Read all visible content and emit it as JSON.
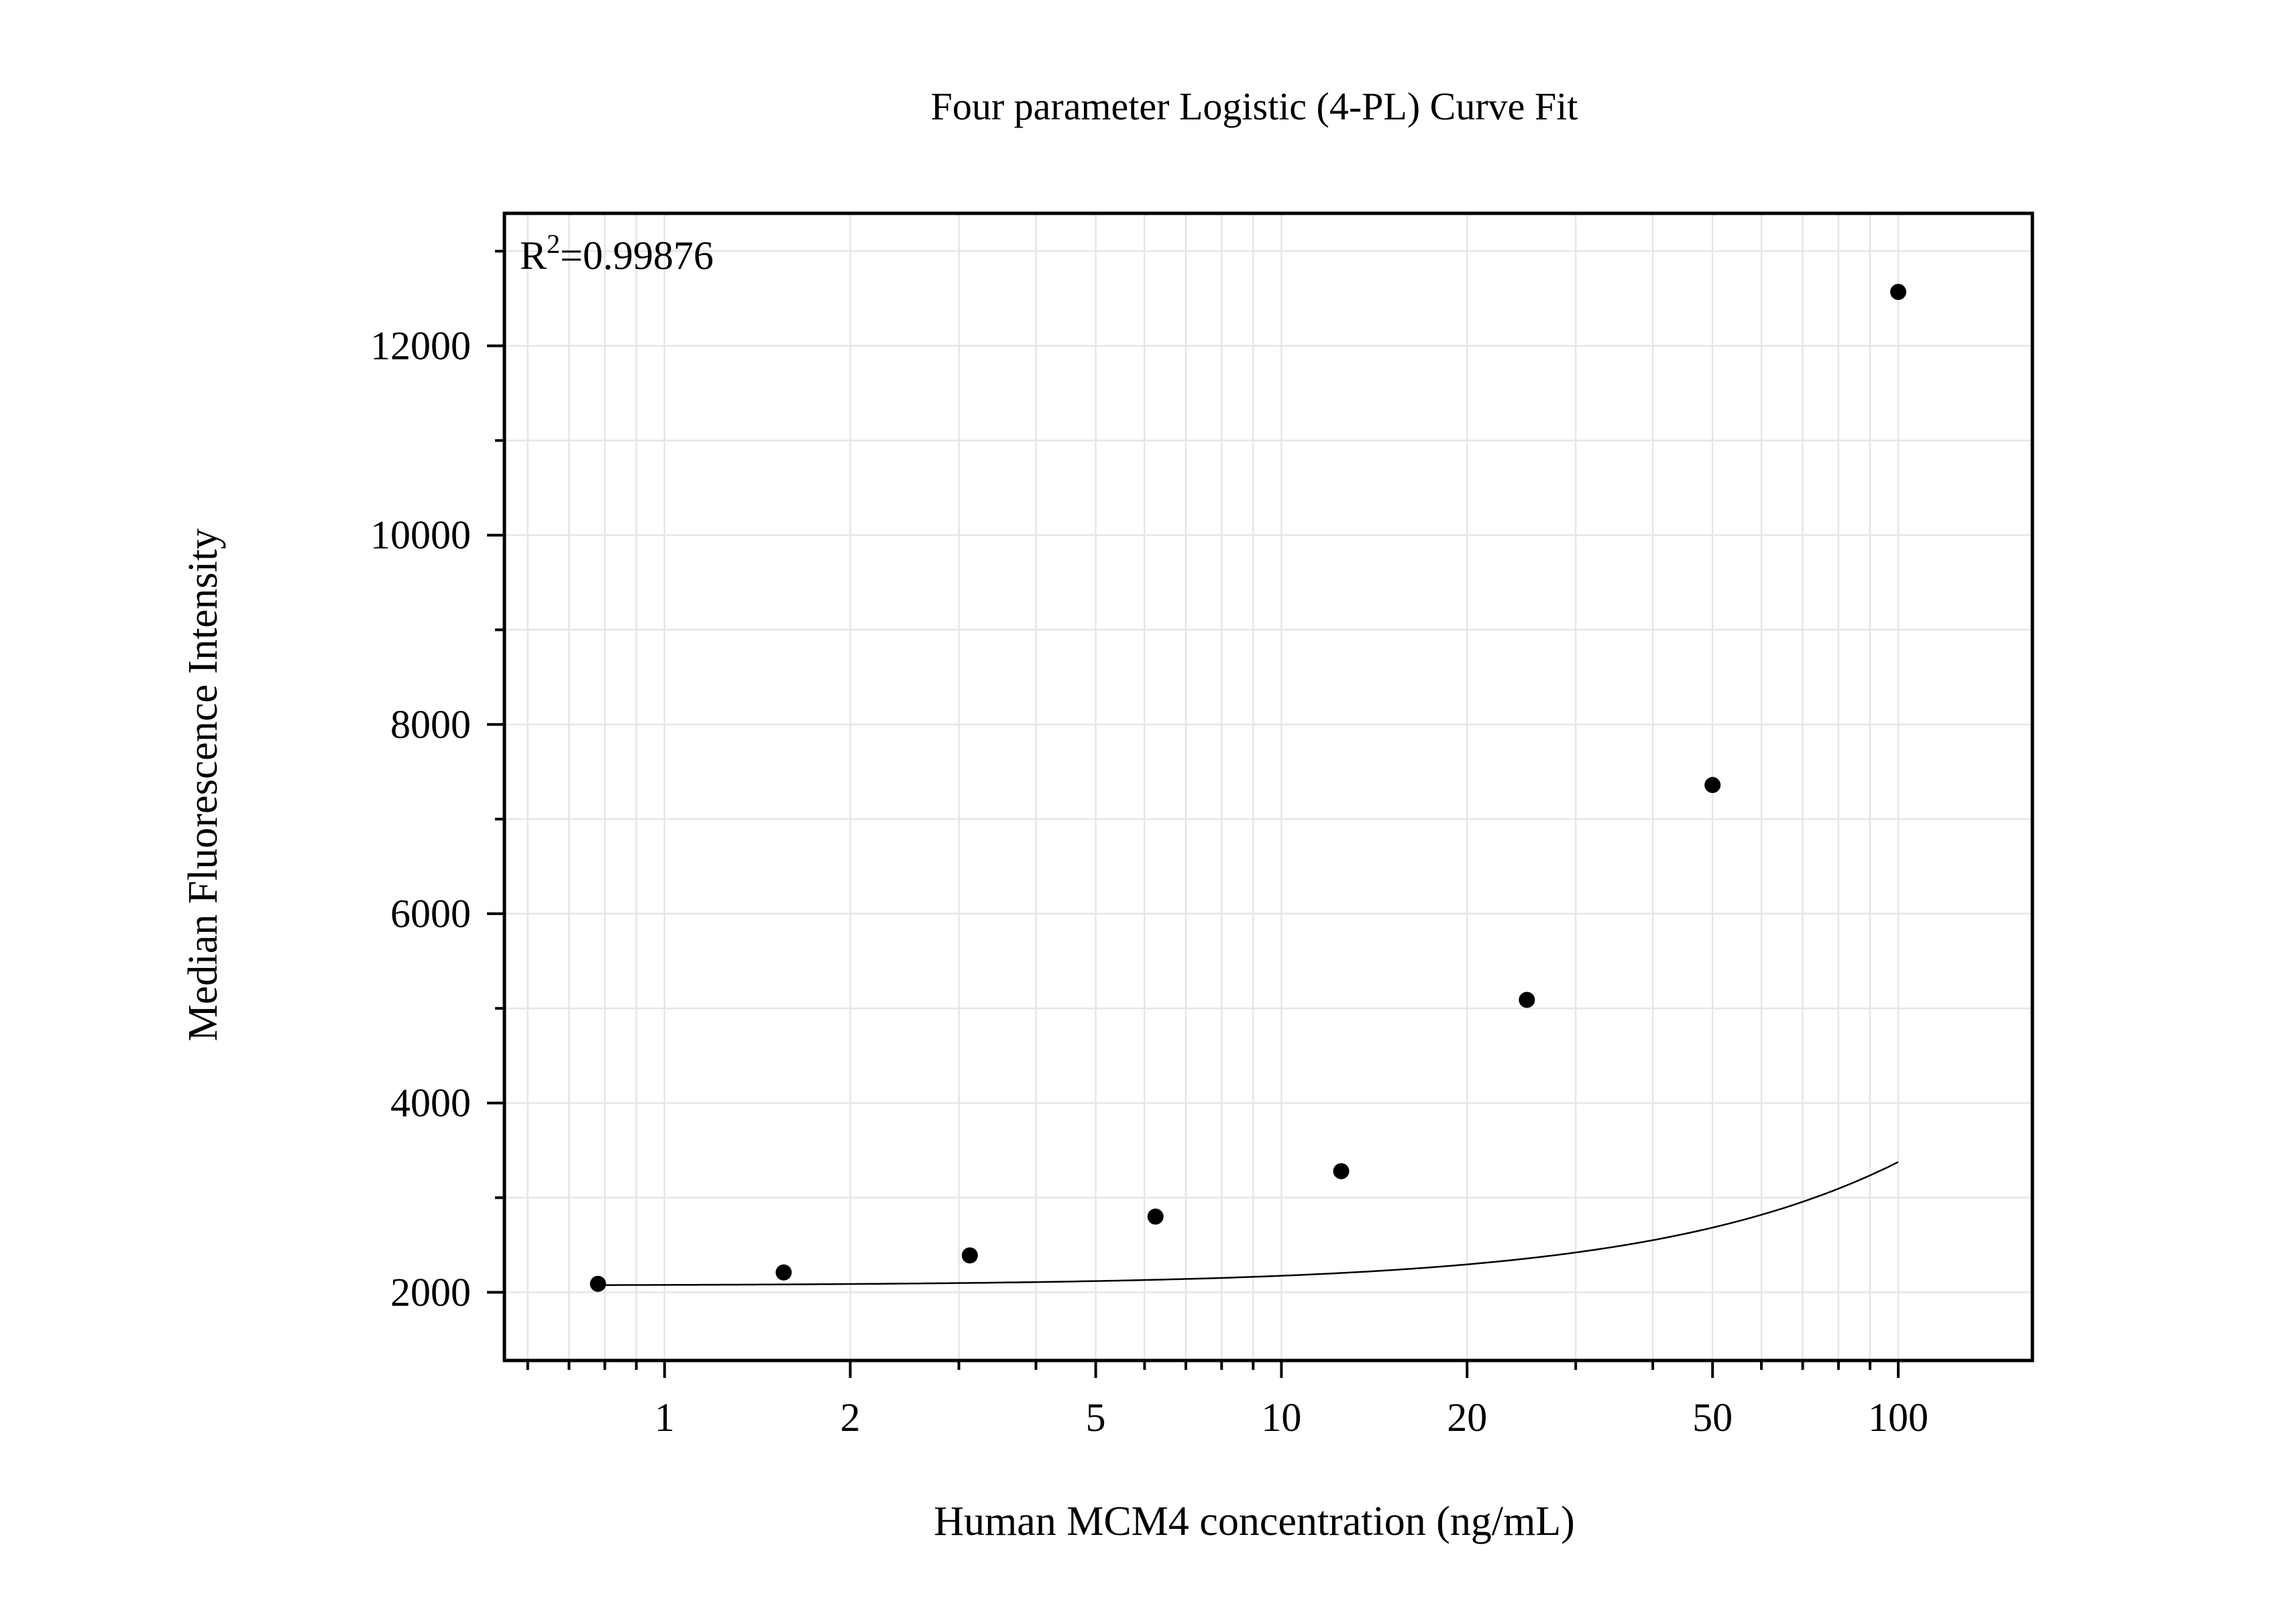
{
  "chart_data": {
    "type": "scatter",
    "title": "Four parameter Logistic (4-PL) Curve Fit",
    "xlabel": "Human MCM4 concentration (ng/mL)",
    "ylabel": "Median Fluorescence Intensity",
    "x_scale": "log",
    "xlim": [
      0.55,
      165
    ],
    "ylim": [
      1280,
      13400
    ],
    "x_ticks": [
      1,
      2,
      5,
      10,
      20,
      50,
      100
    ],
    "x_tick_labels": [
      "1",
      "2",
      "5",
      "10",
      "20",
      "50",
      "100"
    ],
    "y_ticks": [
      2000,
      4000,
      6000,
      8000,
      10000,
      12000
    ],
    "y_tick_labels": [
      "2000",
      "4000",
      "6000",
      "8000",
      "10000",
      "12000"
    ],
    "grid": true,
    "annotation": {
      "base": "R",
      "superscript": "2",
      "value": "=0.99876"
    },
    "series": [
      {
        "marker": "dot",
        "x": [
          0.78,
          1.56,
          3.125,
          6.25,
          12.5,
          25,
          50,
          100
        ],
        "y": [
          2090,
          2210,
          2390,
          2800,
          3280,
          5090,
          7360,
          12570
        ]
      }
    ],
    "fit": {
      "model": "4PL",
      "a": 2070,
      "d": 100000,
      "c": 5000,
      "b": 1.1
    },
    "colors": {
      "background": "#ffffff",
      "axis": "#000000",
      "grid": "#e6e6e6",
      "marker": "#000000",
      "curve": "#000000"
    }
  }
}
